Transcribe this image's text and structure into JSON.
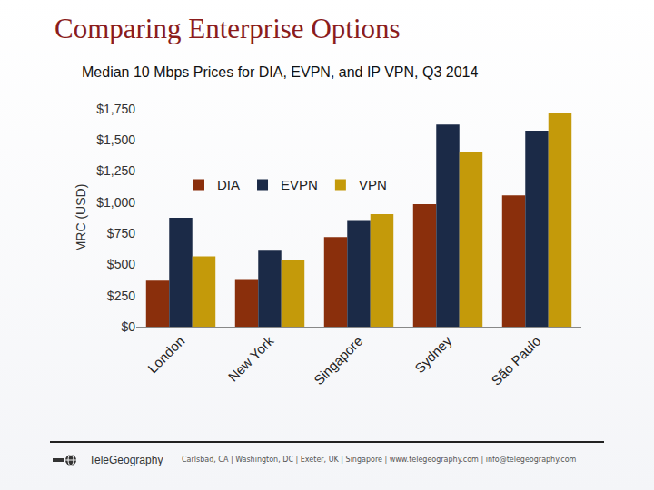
{
  "heading": "Comparing Enterprise Options",
  "footer": {
    "logo": "TeleGeography",
    "text": "Carlsbad, CA | Washington, DC | Exeter, UK | Singapore | www.telegeography.com | info@telegeography.com"
  },
  "chart_data": {
    "type": "bar",
    "title": "Median 10 Mbps Prices for DIA, EVPN, and IP VPN, Q3 2014",
    "y_label": "MRC (USD)",
    "categories": [
      "London",
      "New York",
      "Singapore",
      "Sydney",
      "São Paulo"
    ],
    "series": [
      {
        "name": "DIA",
        "color": "#8a2f0c",
        "values": [
          370,
          375,
          720,
          985,
          1055
        ]
      },
      {
        "name": "EVPN",
        "color": "#1b2a47",
        "values": [
          875,
          610,
          850,
          1625,
          1575
        ]
      },
      {
        "name": "VPN",
        "color": "#c49a0a",
        "values": [
          565,
          535,
          905,
          1400,
          1715
        ]
      }
    ],
    "ylim": [
      0,
      1750
    ],
    "yticks": [
      {
        "value": 0,
        "label": "$0"
      },
      {
        "value": 250,
        "label": "$250"
      },
      {
        "value": 500,
        "label": "$500"
      },
      {
        "value": 750,
        "label": "$750"
      },
      {
        "value": 1000,
        "label": "$1,000"
      },
      {
        "value": 1250,
        "label": "$1,250"
      },
      {
        "value": 1500,
        "label": "$1,500"
      },
      {
        "value": 1750,
        "label": "$1,750"
      }
    ],
    "grid": false,
    "legend": "upper left"
  }
}
